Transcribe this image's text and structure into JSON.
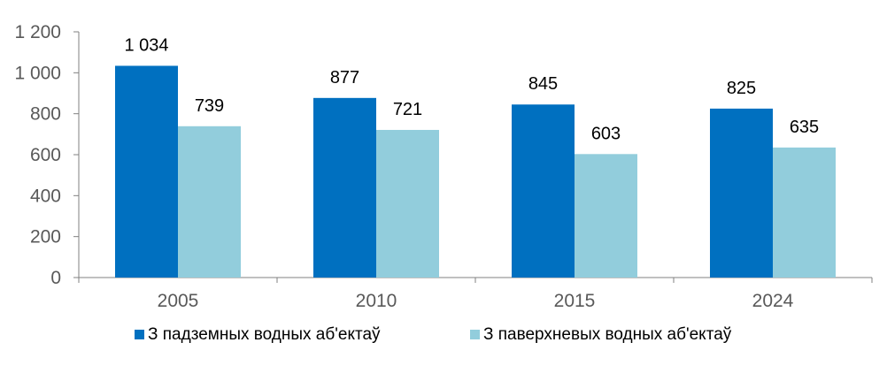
{
  "chart_data": {
    "type": "bar",
    "categories": [
      "2005",
      "2010",
      "2015",
      "2024"
    ],
    "series": [
      {
        "name": "З падземных водных аб'ектаў",
        "values": [
          1034,
          877,
          845,
          825
        ],
        "labels": [
          "1 034",
          "877",
          "845",
          "825"
        ],
        "color": "#0070C0"
      },
      {
        "name": "З паверхневых водных аб'ектаў",
        "values": [
          739,
          721,
          603,
          635
        ],
        "labels": [
          "739",
          "721",
          "603",
          "635"
        ],
        "color": "#92CDDC"
      }
    ],
    "yticks": [
      0,
      200,
      400,
      600,
      800,
      1000,
      1200
    ],
    "ytick_labels": [
      "0",
      "200",
      "400",
      "600",
      "800",
      "1 000",
      "1 200"
    ],
    "ylim": [
      0,
      1200
    ],
    "grid": false,
    "legend_position": "bottom",
    "axis_color": "#808080",
    "tick_text_color": "#595959"
  }
}
